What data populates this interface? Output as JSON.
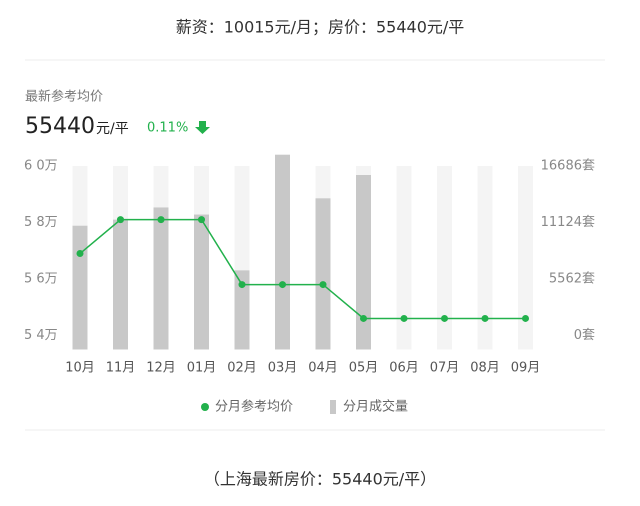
{
  "header": {
    "title": "薪资：10015元/月；房价：55440元/平"
  },
  "summary": {
    "label": "最新参考均价",
    "price": "55440",
    "price_unit": "元/平",
    "change": "0.11%"
  },
  "footer": {
    "text": "（上海最新房价：55440元/平）"
  },
  "chart_data": {
    "type": "combo",
    "categories": [
      "10月",
      "11月",
      "12月",
      "01月",
      "02月",
      "03月",
      "04月",
      "05月",
      "06月",
      "07月",
      "08月",
      "09月"
    ],
    "series": [
      {
        "name": "分月参考均价",
        "type": "line",
        "color": "#22b14c",
        "values": [
          56900,
          58100,
          58100,
          58100,
          55800,
          55800,
          55800,
          54600,
          54600,
          54600,
          54600,
          54600
        ]
      },
      {
        "name": "分月成交量",
        "type": "bar",
        "axis": "y2",
        "color": "#c8c8c8",
        "values": [
          10800,
          11400,
          12600,
          11900,
          6400,
          17800,
          13500,
          15800,
          null,
          null,
          null,
          null
        ]
      }
    ],
    "ylim": [
      53500,
      60000
    ],
    "yticks": [
      {
        "value": 54000,
        "label": "5 4万"
      },
      {
        "value": 56000,
        "label": "5 6万"
      },
      {
        "value": 58000,
        "label": "5 8万"
      },
      {
        "value": 60000,
        "label": "6 0万"
      }
    ],
    "y2lim": [
      -1400,
      16686
    ],
    "y2ticks": [
      {
        "value": 0,
        "label": "0套"
      },
      {
        "value": 5562,
        "label": "5562套"
      },
      {
        "value": 11124,
        "label": "11124套"
      },
      {
        "value": 16686,
        "label": "16686套"
      }
    ],
    "grid": true,
    "legend": "bottom"
  }
}
